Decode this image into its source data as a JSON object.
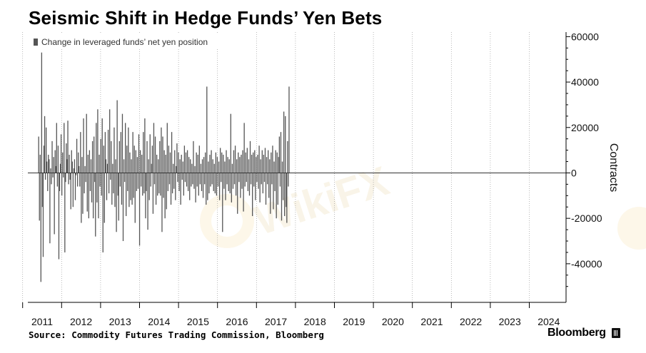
{
  "header": {
    "title": "Seismic Shift in Hedge Funds’ Yen Bets"
  },
  "footer": {
    "source": "Source: Commodity Futures Trading Commission, Bloomberg",
    "brand": "Bloomberg"
  },
  "chart_data": {
    "type": "bar",
    "title": "Seismic Shift in Hedge Funds’ Yen Bets",
    "ylabel": "Contracts",
    "xlabel": "",
    "ylim": [
      -57000,
      62000
    ],
    "yticks": [
      -40000,
      -20000,
      0,
      20000,
      40000,
      60000
    ],
    "ytick_labels": [
      "-40000",
      "-20000",
      "0",
      "20000",
      "40000",
      "60000"
    ],
    "xticks": [
      "2011",
      "2012",
      "2013",
      "2014",
      "2015",
      "2016",
      "2017",
      "2018",
      "2019",
      "2020",
      "2021",
      "2022",
      "2023",
      "2024"
    ],
    "legend": {
      "label": "Change in leveraged funds’ net yen position",
      "color": "#555555",
      "placement": "top-left"
    },
    "bar_color": "#555555",
    "x_start": 2010.9,
    "x_step_years": 0.019178,
    "series": [
      {
        "values": [
          16000,
          -21000,
          8000,
          -48000,
          53000,
          -15000,
          -37000,
          12000,
          25000,
          -3000,
          20000,
          5000,
          -8000,
          8000,
          6000,
          -31000,
          2000,
          -5000,
          14000,
          -2000,
          7000,
          -27000,
          10000,
          3000,
          22000,
          -6000,
          12000,
          -38000,
          -8000,
          4000,
          17000,
          -10000,
          9000,
          -2000,
          22000,
          -35000,
          -4000,
          13000,
          6000,
          23000,
          -5000,
          8000,
          -3000,
          -16000,
          10000,
          5000,
          -15000,
          2000,
          6000,
          -12000,
          -1000,
          15000,
          -6000,
          9000,
          3000,
          -6000,
          18000,
          -22000,
          7000,
          -18000,
          24000,
          -9000,
          3000,
          -4000,
          26000,
          -17000,
          8000,
          -20000,
          10000,
          -8000,
          6000,
          -13000,
          14000,
          -20000,
          16000,
          -4000,
          -28000,
          22000,
          -13000,
          28000,
          -20000,
          8000,
          -6000,
          15000,
          -10000,
          24000,
          -35000,
          12000,
          -22000,
          18000,
          6000,
          -12000,
          4000,
          19000,
          -9000,
          28000,
          -3000,
          14000,
          -14000,
          4000,
          -9000,
          20000,
          -15000,
          6000,
          -26000,
          32000,
          -10000,
          -21000,
          14000,
          -6000,
          18000,
          -14000,
          26000,
          -30000,
          6000,
          -4000,
          22000,
          -19000,
          12000,
          -8000,
          20000,
          -15000,
          9000,
          -12000,
          6000,
          -14000,
          18000,
          -11000,
          12000,
          -22000,
          10000,
          -8000,
          7000,
          -7000,
          17000,
          -32000,
          10000,
          -6000,
          8000,
          -10000,
          18000,
          -9000,
          24000,
          -20000,
          -8000,
          14000,
          -25000,
          6000,
          -12000,
          17000,
          -6000,
          4000,
          12000,
          -18000,
          22000,
          -5000,
          16000,
          -14000,
          8000,
          -10000,
          6000,
          -9000,
          14000,
          -10000,
          20000,
          -26000,
          16000,
          -11000,
          10000,
          -20000,
          8000,
          -16000,
          22000,
          -8000,
          12000,
          -5000,
          9000,
          -14000,
          18000,
          -9000,
          4000,
          -7000,
          10000,
          -12000,
          3000,
          13000,
          -4000,
          9000,
          -8000,
          6000,
          -14000,
          8000,
          -3000,
          5000,
          -10000,
          12000,
          -4000,
          9000,
          -6000,
          10000,
          -8000,
          7000,
          -12000,
          6000,
          -6000,
          4000,
          -5000,
          14000,
          -7000,
          3000,
          -13000,
          9000,
          -6000,
          8000,
          -10000,
          12000,
          -5000,
          4000,
          -8000,
          6000,
          -11000,
          7000,
          -5000,
          9000,
          -14000,
          38000,
          -12000,
          5000,
          -9000,
          8000,
          -6000,
          10000,
          -5000,
          6000,
          -8000,
          4000,
          -9000,
          9000,
          -10000,
          7000,
          -6000,
          5000,
          -12000,
          11000,
          -4000,
          9000,
          -26000,
          8000,
          -7000,
          5000,
          -12000,
          10000,
          -5000,
          7000,
          -8000,
          6000,
          -9000,
          26000,
          -13000,
          4000,
          -7000,
          10000,
          -5000,
          12000,
          -10000,
          6000,
          -18000,
          9000,
          -4000,
          7000,
          -11000,
          8000,
          -7000,
          10000,
          -17000,
          22000,
          -6000,
          9000,
          -4000,
          11000,
          -8000,
          6000,
          -10000,
          14000,
          -5000,
          8000,
          -19000,
          9000,
          -6000,
          10000,
          -12000,
          7000,
          -4000,
          8000,
          -7000,
          12000,
          -13000,
          6000,
          -5000,
          10000,
          -9000,
          8000,
          -4000,
          11000,
          -14000,
          7000,
          -5000,
          10000,
          -11000,
          6000,
          -18000,
          9000,
          -5000,
          12000,
          -16000,
          5000,
          -8000,
          10000,
          -20000,
          9000,
          -14000,
          7000,
          16000,
          -6000,
          18000,
          -21000,
          5000,
          -12000,
          27000,
          -19000,
          25000,
          -15000,
          -22000,
          14000,
          -6000,
          38000
        ]
      }
    ]
  }
}
